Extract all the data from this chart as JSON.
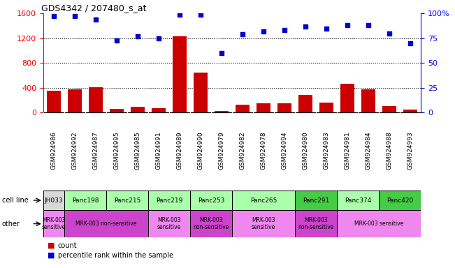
{
  "title": "GDS4342 / 207480_s_at",
  "samples": [
    "GSM924986",
    "GSM924992",
    "GSM924987",
    "GSM924995",
    "GSM924985",
    "GSM924991",
    "GSM924989",
    "GSM924990",
    "GSM924979",
    "GSM924982",
    "GSM924978",
    "GSM924994",
    "GSM924980",
    "GSM924983",
    "GSM924981",
    "GSM924984",
    "GSM924988",
    "GSM924993"
  ],
  "counts": [
    350,
    380,
    410,
    60,
    90,
    70,
    1230,
    640,
    30,
    130,
    155,
    155,
    290,
    165,
    460,
    370,
    110,
    45
  ],
  "percentiles": [
    97,
    97,
    94,
    73,
    77,
    75,
    99,
    99,
    60,
    79,
    82,
    83,
    87,
    85,
    88,
    88,
    80,
    70
  ],
  "ylim_left": [
    0,
    1600
  ],
  "ylim_right": [
    0,
    100
  ],
  "yticks_left": [
    0,
    400,
    800,
    1200,
    1600
  ],
  "yticks_right": [
    0,
    25,
    50,
    75,
    100
  ],
  "bar_color": "#cc0000",
  "dot_color": "#0000cc",
  "cell_lines": [
    {
      "label": "JH033",
      "start": 0,
      "end": 1,
      "color": "#d8d8d8"
    },
    {
      "label": "Panc198",
      "start": 1,
      "end": 3,
      "color": "#aaffaa"
    },
    {
      "label": "Panc215",
      "start": 3,
      "end": 5,
      "color": "#aaffaa"
    },
    {
      "label": "Panc219",
      "start": 5,
      "end": 7,
      "color": "#aaffaa"
    },
    {
      "label": "Panc253",
      "start": 7,
      "end": 9,
      "color": "#aaffaa"
    },
    {
      "label": "Panc265",
      "start": 9,
      "end": 12,
      "color": "#aaffaa"
    },
    {
      "label": "Panc291",
      "start": 12,
      "end": 14,
      "color": "#44cc44"
    },
    {
      "label": "Panc374",
      "start": 14,
      "end": 16,
      "color": "#aaffaa"
    },
    {
      "label": "Panc420",
      "start": 16,
      "end": 18,
      "color": "#44cc44"
    }
  ],
  "other_groups": [
    {
      "label": "MRK-003\nsensitive",
      "start": 0,
      "end": 1,
      "color": "#ee88ee"
    },
    {
      "label": "MRK-003 non-sensitive",
      "start": 1,
      "end": 5,
      "color": "#cc44cc"
    },
    {
      "label": "MRK-003\nsensitive",
      "start": 5,
      "end": 7,
      "color": "#ee88ee"
    },
    {
      "label": "MRK-003\nnon-sensitive",
      "start": 7,
      "end": 9,
      "color": "#cc44cc"
    },
    {
      "label": "MRK-003\nsensitive",
      "start": 9,
      "end": 12,
      "color": "#ee88ee"
    },
    {
      "label": "MRK-003\nnon-sensitive",
      "start": 12,
      "end": 14,
      "color": "#cc44cc"
    },
    {
      "label": "MRK-003 sensitive",
      "start": 14,
      "end": 18,
      "color": "#ee88ee"
    }
  ]
}
